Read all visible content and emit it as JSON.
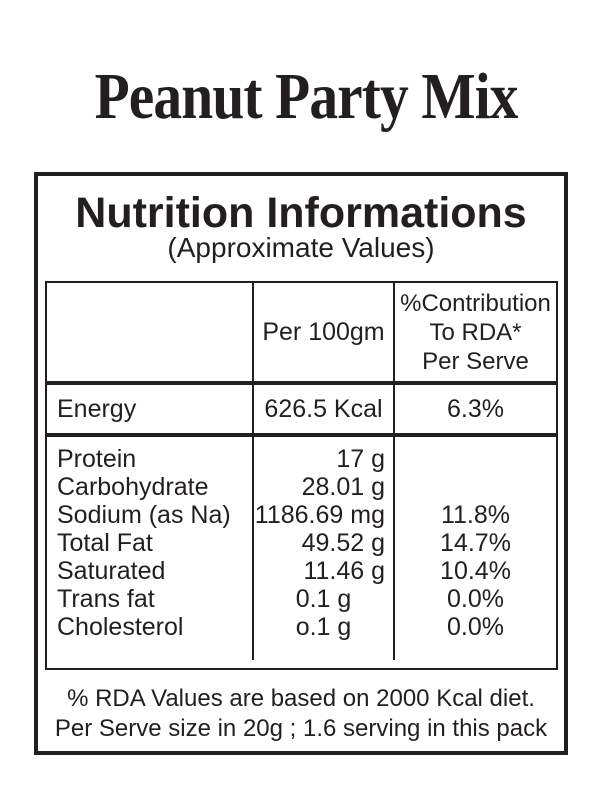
{
  "title": "Peanut Party Mix",
  "panel": {
    "heading": "Nutrition Informations",
    "subheading": "(Approximate Values)",
    "table": {
      "header": {
        "col1": "",
        "col2": "Per 100gm",
        "col3_lines": [
          "%Contribution",
          "To RDA*",
          "Per Serve"
        ]
      },
      "energy": {
        "label": "Energy",
        "value": "626.5 Kcal",
        "rda": "6.3%"
      },
      "rows": [
        {
          "label": "Protein",
          "value": "17 g",
          "rda": ""
        },
        {
          "label": "Carbohydrate",
          "value": "28.01 g",
          "rda": ""
        },
        {
          "label": "Sodium (as Na)",
          "value": "1186.69 mg",
          "rda": "11.8%"
        },
        {
          "label": "Total Fat",
          "value": "49.52 g",
          "rda": "14.7%"
        },
        {
          "label": "Saturated",
          "value": "11.46 g",
          "rda": "10.4%"
        },
        {
          "label": "Trans fat",
          "value": "0.1 g",
          "rda": "0.0%"
        },
        {
          "label": "Cholesterol",
          "value": "o.1 g",
          "rda": "0.0%"
        }
      ]
    },
    "footnote_lines": [
      "% RDA Values are based on 2000 Kcal diet.",
      "Per Serve size in 20g ; 1.6 serving in this pack"
    ]
  },
  "colors": {
    "ink": "#231f20",
    "background": "#ffffff"
  }
}
